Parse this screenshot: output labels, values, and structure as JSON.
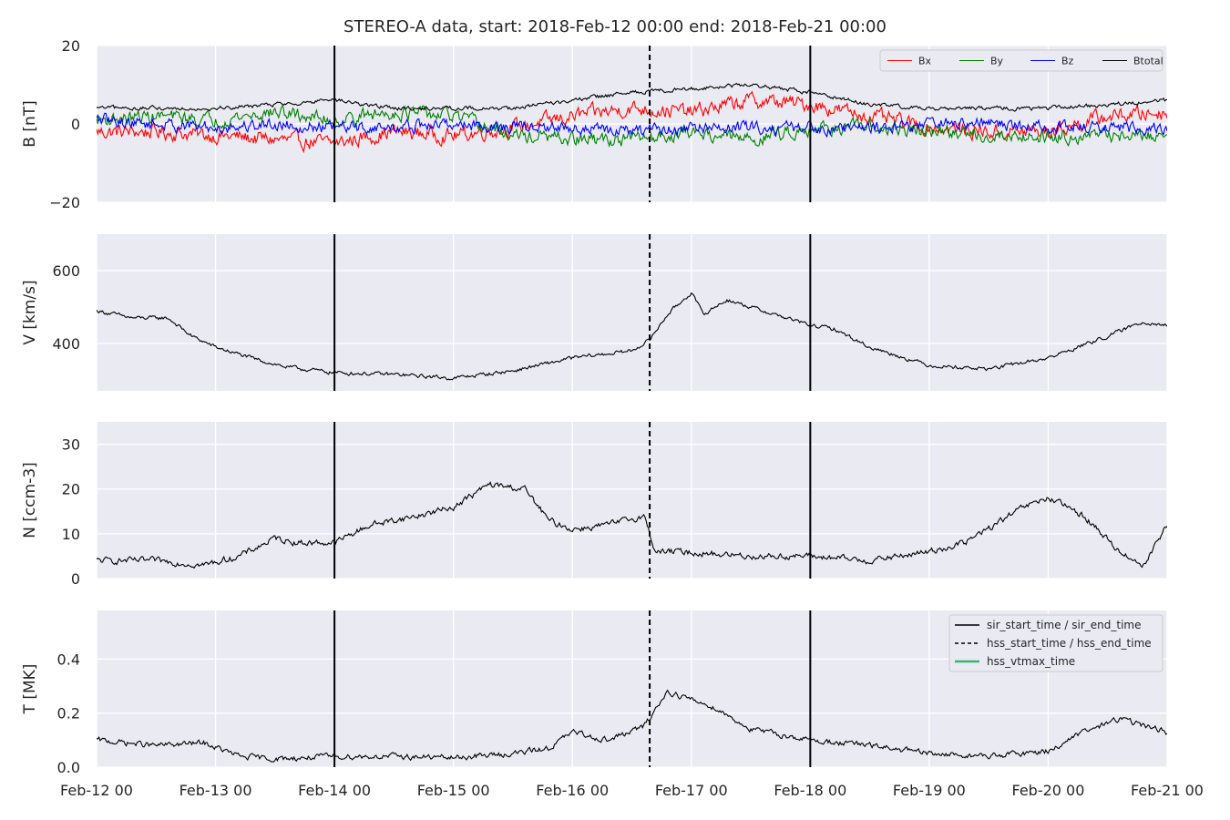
{
  "chart_data": [
    {
      "type": "line",
      "title": "STEREO-A data, start: 2018-Feb-12 00:00  end: 2018-Feb-21 00:00",
      "ylabel": "B [nT]",
      "ylim": [
        -20,
        20
      ],
      "yticks": [
        -20,
        0,
        20
      ],
      "grid": true,
      "legend": "top-right",
      "legend_entries": [
        "Bx",
        "By",
        "Bz",
        "Btotal"
      ],
      "series": [
        {
          "name": "Bx",
          "color": "#ff0000",
          "x": [
            0.0,
            0.5,
            1.0,
            1.5,
            2.0,
            2.5,
            3.0,
            3.5,
            4.0,
            4.5,
            5.0,
            5.5,
            6.0,
            6.5,
            7.0,
            7.5,
            8.0,
            8.5,
            9.0
          ],
          "y": [
            -2,
            -2,
            -3,
            -4,
            -5,
            -2,
            -3,
            -1,
            2,
            4,
            3,
            6,
            5,
            2,
            -1,
            -2,
            -2,
            2,
            3
          ]
        },
        {
          "name": "By",
          "color": "#008000",
          "x": [
            0.0,
            0.5,
            1.0,
            1.5,
            2.0,
            2.5,
            3.0,
            3.5,
            4.0,
            4.5,
            5.0,
            5.5,
            6.0,
            6.5,
            7.0,
            7.5,
            8.0,
            8.5,
            9.0
          ],
          "y": [
            1,
            2,
            1,
            3,
            1,
            3,
            2,
            -3,
            -4,
            -4,
            -2,
            -4,
            -1,
            -1,
            -2,
            -3,
            -3,
            -3,
            -3
          ]
        },
        {
          "name": "Bz",
          "color": "#0000ff",
          "x": [
            0.0,
            0.5,
            1.0,
            1.5,
            2.0,
            2.5,
            3.0,
            3.5,
            4.0,
            4.5,
            5.0,
            5.5,
            6.0,
            6.5,
            7.0,
            7.5,
            8.0,
            8.5,
            9.0
          ],
          "y": [
            1,
            0,
            -1,
            0,
            -1,
            -1,
            0,
            -1,
            -1,
            -2,
            -1,
            -1,
            -1,
            -1,
            0,
            0,
            -1,
            -1,
            -1
          ]
        },
        {
          "name": "Btotal",
          "color": "#000000",
          "x": [
            0.0,
            0.5,
            1.0,
            1.5,
            2.0,
            2.5,
            3.0,
            3.5,
            4.0,
            4.5,
            5.0,
            5.5,
            6.0,
            6.5,
            7.0,
            7.5,
            8.0,
            8.5,
            9.0
          ],
          "y": [
            4,
            4,
            4,
            5,
            6,
            4,
            4,
            4,
            6,
            8,
            9,
            10,
            8,
            5,
            4,
            4,
            4,
            5,
            6
          ]
        }
      ],
      "vlines": [
        {
          "x": 2.0,
          "style": "solid"
        },
        {
          "x": 4.65,
          "style": "dashed"
        },
        {
          "x": 6.0,
          "style": "solid"
        }
      ]
    },
    {
      "type": "line",
      "ylabel": "V [km/s]",
      "ylim": [
        270,
        700
      ],
      "yticks": [
        400,
        600
      ],
      "grid": true,
      "series": [
        {
          "color": "#000000",
          "x": [
            0.0,
            0.3,
            0.6,
            0.8,
            1.0,
            1.3,
            1.6,
            2.0,
            2.5,
            3.0,
            3.5,
            4.0,
            4.5,
            4.65,
            4.8,
            5.0,
            5.1,
            5.3,
            5.6,
            6.0,
            6.2,
            6.5,
            7.0,
            7.5,
            8.0,
            8.5,
            8.8,
            9.0
          ],
          "y": [
            490,
            470,
            470,
            420,
            390,
            360,
            335,
            320,
            315,
            305,
            325,
            360,
            380,
            410,
            480,
            540,
            480,
            520,
            490,
            450,
            440,
            390,
            340,
            330,
            360,
            420,
            460,
            450
          ]
        }
      ],
      "vlines": [
        {
          "x": 2.0,
          "style": "solid"
        },
        {
          "x": 4.65,
          "style": "dashed"
        },
        {
          "x": 6.0,
          "style": "solid"
        }
      ]
    },
    {
      "type": "line",
      "ylabel": "N [ccm-3]",
      "ylim": [
        0,
        35
      ],
      "yticks": [
        0,
        10,
        20,
        30
      ],
      "grid": true,
      "series": [
        {
          "color": "#000000",
          "x": [
            0.0,
            0.5,
            0.9,
            1.2,
            1.5,
            1.7,
            2.0,
            2.3,
            2.7,
            3.0,
            3.3,
            3.6,
            3.8,
            4.0,
            4.3,
            4.6,
            4.7,
            4.9,
            5.5,
            6.0,
            6.5,
            7.0,
            7.3,
            7.8,
            8.0,
            8.3,
            8.6,
            8.8,
            9.0
          ],
          "y": [
            4,
            4,
            3,
            5,
            9,
            8,
            8,
            12,
            14,
            16,
            21,
            20,
            13,
            11,
            12,
            14,
            6,
            6,
            5,
            5,
            4,
            6,
            8,
            16,
            18,
            14,
            6,
            3,
            12
          ]
        }
      ],
      "vlines": [
        {
          "x": 2.0,
          "style": "solid"
        },
        {
          "x": 4.65,
          "style": "dashed"
        },
        {
          "x": 6.0,
          "style": "solid"
        }
      ]
    },
    {
      "type": "line",
      "ylabel": "T [MK]",
      "ylim": [
        0.0,
        0.58
      ],
      "yticks": [
        0.0,
        0.2,
        0.4
      ],
      "xlim": [
        0,
        9
      ],
      "xticks": [
        "Feb-12 00",
        "Feb-13 00",
        "Feb-14 00",
        "Feb-15 00",
        "Feb-16 00",
        "Feb-17 00",
        "Feb-18 00",
        "Feb-19 00",
        "Feb-20 00",
        "Feb-21 00"
      ],
      "grid": true,
      "legend": "top-right",
      "legend_entries": [
        {
          "label": "sir_start_time / sir_end_time",
          "style": "solid",
          "color": "#000000"
        },
        {
          "label": "hss_start_time / hss_end_time",
          "style": "dashed",
          "color": "#000000"
        },
        {
          "label": "hss_vtmax_time",
          "style": "solid",
          "color": "#3cb371"
        }
      ],
      "series": [
        {
          "color": "#000000",
          "x": [
            0.0,
            0.5,
            0.9,
            1.2,
            1.5,
            2.0,
            2.5,
            3.0,
            3.5,
            3.8,
            4.0,
            4.3,
            4.6,
            4.8,
            5.0,
            5.2,
            5.5,
            6.0,
            6.5,
            7.0,
            7.5,
            8.0,
            8.3,
            8.6,
            9.0
          ],
          "y": [
            0.1,
            0.08,
            0.09,
            0.04,
            0.03,
            0.04,
            0.04,
            0.035,
            0.05,
            0.07,
            0.13,
            0.1,
            0.15,
            0.28,
            0.25,
            0.22,
            0.14,
            0.1,
            0.08,
            0.05,
            0.04,
            0.06,
            0.13,
            0.18,
            0.13
          ]
        }
      ],
      "vlines": [
        {
          "x": 2.0,
          "style": "solid"
        },
        {
          "x": 4.65,
          "style": "dashed"
        },
        {
          "x": 6.0,
          "style": "solid"
        }
      ]
    }
  ]
}
